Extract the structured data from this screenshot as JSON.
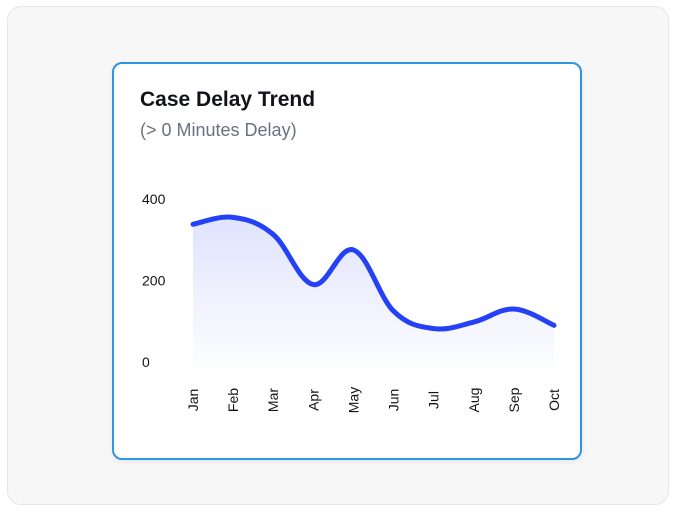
{
  "chart_data": {
    "type": "area",
    "title": "Case Delay Trend",
    "subtitle": "(> 0 Minutes Delay)",
    "categories": [
      "Jan",
      "Feb",
      "Mar",
      "Apr",
      "May",
      "Jun",
      "Jul",
      "Aug",
      "Sep",
      "Oct"
    ],
    "series": [
      {
        "values": [
          338,
          355,
          313,
          190,
          275,
          125,
          82,
          98,
          130,
          90
        ]
      }
    ],
    "yticks": [
      0,
      200,
      400
    ],
    "ylim": [
      0,
      400
    ],
    "grid": false,
    "legend": "none",
    "colors": {
      "line": "#2541f5",
      "fill_top": "#dfe3fd",
      "fill_bottom": "#ffffff",
      "border": "#2f95e0"
    }
  }
}
